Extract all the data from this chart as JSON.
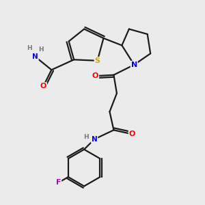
{
  "background_color": "#ebebeb",
  "bond_color": "#1a1a1a",
  "atom_colors": {
    "O": "#ff0000",
    "N": "#0000ee",
    "S": "#ccaa00",
    "F": "#bb00bb",
    "H": "#777777",
    "C": "#1a1a1a"
  },
  "figsize": [
    3.0,
    3.0
  ],
  "dpi": 100
}
